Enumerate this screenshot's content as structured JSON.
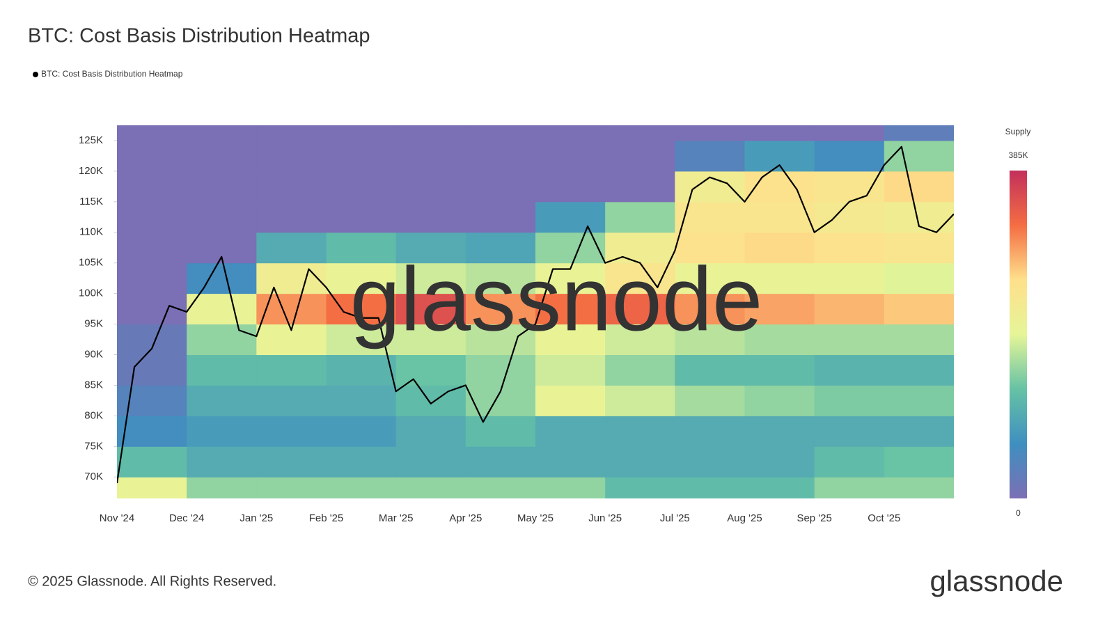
{
  "chart_data": {
    "type": "heatmap",
    "title": "BTC: Cost Basis Distribution Heatmap",
    "legend_label": "BTC: Cost Basis Distribution Heatmap",
    "footer": "© 2025 Glassnode. All Rights Reserved.",
    "brand": "glassnode",
    "colorbar": {
      "title": "Supply",
      "lim": [
        0,
        385000
      ],
      "ticks": [
        0,
        {
          "value": 385000,
          "label": "385K"
        }
      ]
    },
    "colorscale": [
      "#7b6fb5",
      "#3f8fc0",
      "#66c2a5",
      "#e6f598",
      "#fee08b",
      "#f46d43",
      "#c2305c"
    ],
    "ylim": [
      66500,
      127500
    ],
    "yticks": [
      {
        "value": 70000,
        "label": "70K"
      },
      {
        "value": 75000,
        "label": "75K"
      },
      {
        "value": 80000,
        "label": "80K"
      },
      {
        "value": 85000,
        "label": "85K"
      },
      {
        "value": 90000,
        "label": "90K"
      },
      {
        "value": 95000,
        "label": "95K"
      },
      {
        "value": 100000,
        "label": "100K"
      },
      {
        "value": 105000,
        "label": "105K"
      },
      {
        "value": 110000,
        "label": "110K"
      },
      {
        "value": 115000,
        "label": "115K"
      },
      {
        "value": 120000,
        "label": "120K"
      },
      {
        "value": 125000,
        "label": "125K"
      }
    ],
    "categories": [
      "Nov '24",
      null,
      null,
      null,
      "Dec '24",
      null,
      null,
      null,
      "Jan '25",
      null,
      null,
      null,
      "Feb '25",
      null,
      null,
      null,
      "Mar '25",
      null,
      null,
      null,
      "Apr '25",
      null,
      null,
      null,
      "May '25",
      null,
      null,
      null,
      "Jun '25",
      null,
      null,
      null,
      "Jul '25",
      null,
      null,
      null,
      "Aug '25",
      null,
      null,
      null,
      "Sep '25",
      null,
      null,
      null,
      "Oct '25",
      null,
      null,
      null,
      null
    ],
    "line": {
      "color": "#000000",
      "values": [
        69000,
        88000,
        91000,
        98000,
        97000,
        101000,
        106000,
        94000,
        93000,
        101000,
        94000,
        104000,
        101000,
        97000,
        96000,
        96000,
        84000,
        86000,
        82000,
        84000,
        85000,
        79000,
        84000,
        93000,
        95000,
        104000,
        104000,
        111000,
        105000,
        106000,
        105000,
        101000,
        107000,
        117000,
        119000,
        118000,
        115000,
        119000,
        121000,
        117000,
        110000,
        112000,
        115000,
        116000,
        121000,
        124000,
        111000,
        110000,
        113000
      ]
    },
    "heatmap": {
      "bins": [
        65000,
        70000,
        75000,
        80000,
        85000,
        90000,
        95000,
        100000,
        105000,
        110000,
        115000,
        120000,
        125000,
        130000
      ],
      "values": [
        [
          200000,
          150000,
          150000,
          150000,
          150000,
          150000,
          150000,
          120000,
          120000,
          120000,
          150000,
          150000
        ],
        [
          120000,
          100000,
          100000,
          100000,
          100000,
          100000,
          100000,
          100000,
          100000,
          100000,
          120000,
          130000
        ],
        [
          60000,
          80000,
          80000,
          80000,
          100000,
          120000,
          100000,
          100000,
          100000,
          100000,
          100000,
          100000
        ],
        [
          40000,
          100000,
          100000,
          100000,
          120000,
          150000,
          200000,
          180000,
          160000,
          150000,
          140000,
          140000
        ],
        [
          20000,
          120000,
          120000,
          110000,
          130000,
          150000,
          180000,
          150000,
          120000,
          120000,
          110000,
          110000
        ],
        [
          20000,
          150000,
          200000,
          180000,
          180000,
          170000,
          200000,
          180000,
          170000,
          160000,
          160000,
          160000
        ],
        [
          0,
          200000,
          300000,
          320000,
          350000,
          300000,
          320000,
          330000,
          300000,
          290000,
          280000,
          270000
        ],
        [
          0,
          60000,
          220000,
          200000,
          180000,
          170000,
          200000,
          240000,
          200000,
          200000,
          200000,
          190000
        ],
        [
          0,
          0,
          100000,
          120000,
          100000,
          90000,
          150000,
          220000,
          250000,
          260000,
          250000,
          240000
        ],
        [
          0,
          0,
          0,
          0,
          0,
          0,
          80000,
          150000,
          240000,
          240000,
          230000,
          220000
        ],
        [
          0,
          0,
          0,
          0,
          0,
          0,
          0,
          0,
          220000,
          250000,
          240000,
          260000
        ],
        [
          0,
          0,
          0,
          0,
          0,
          0,
          0,
          0,
          40000,
          80000,
          60000,
          150000
        ],
        [
          0,
          0,
          0,
          0,
          0,
          0,
          0,
          0,
          0,
          0,
          0,
          30000
        ]
      ]
    }
  }
}
